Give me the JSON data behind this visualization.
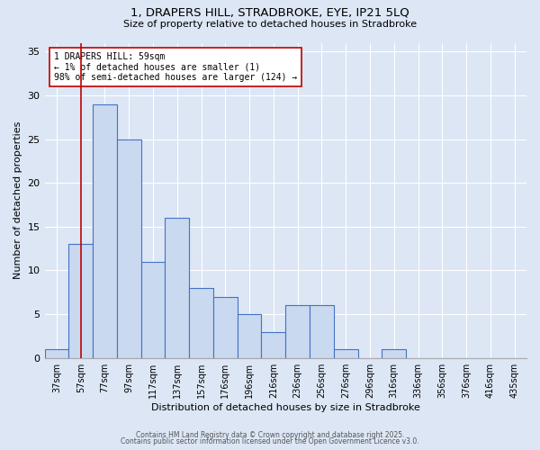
{
  "title_line1": "1, DRAPERS HILL, STRADBROKE, EYE, IP21 5LQ",
  "title_line2": "Size of property relative to detached houses in Stradbroke",
  "xlabel": "Distribution of detached houses by size in Stradbroke",
  "ylabel": "Number of detached properties",
  "categories": [
    "37sqm",
    "57sqm",
    "77sqm",
    "97sqm",
    "117sqm",
    "137sqm",
    "157sqm",
    "176sqm",
    "196sqm",
    "216sqm",
    "236sqm",
    "256sqm",
    "276sqm",
    "296sqm",
    "316sqm",
    "336sqm",
    "356sqm",
    "376sqm",
    "416sqm",
    "435sqm"
  ],
  "values": [
    1,
    13,
    29,
    25,
    11,
    16,
    8,
    7,
    5,
    3,
    6,
    6,
    1,
    0,
    1,
    0,
    0,
    0,
    0,
    0
  ],
  "bar_color": "#c9d9f0",
  "bar_edge_color": "#4472c4",
  "property_line_x": 1,
  "property_line_color": "#c00000",
  "annotation_text": "1 DRAPERS HILL: 59sqm\n← 1% of detached houses are smaller (1)\n98% of semi-detached houses are larger (124) →",
  "annotation_box_color": "#ffffff",
  "annotation_box_edge": "#c00000",
  "ylim": [
    0,
    36
  ],
  "yticks": [
    0,
    5,
    10,
    15,
    20,
    25,
    30,
    35
  ],
  "footer_line1": "Contains HM Land Registry data © Crown copyright and database right 2025.",
  "footer_line2": "Contains public sector information licensed under the Open Government Licence v3.0.",
  "background_color": "#dce6f5",
  "grid_color": "#ffffff"
}
